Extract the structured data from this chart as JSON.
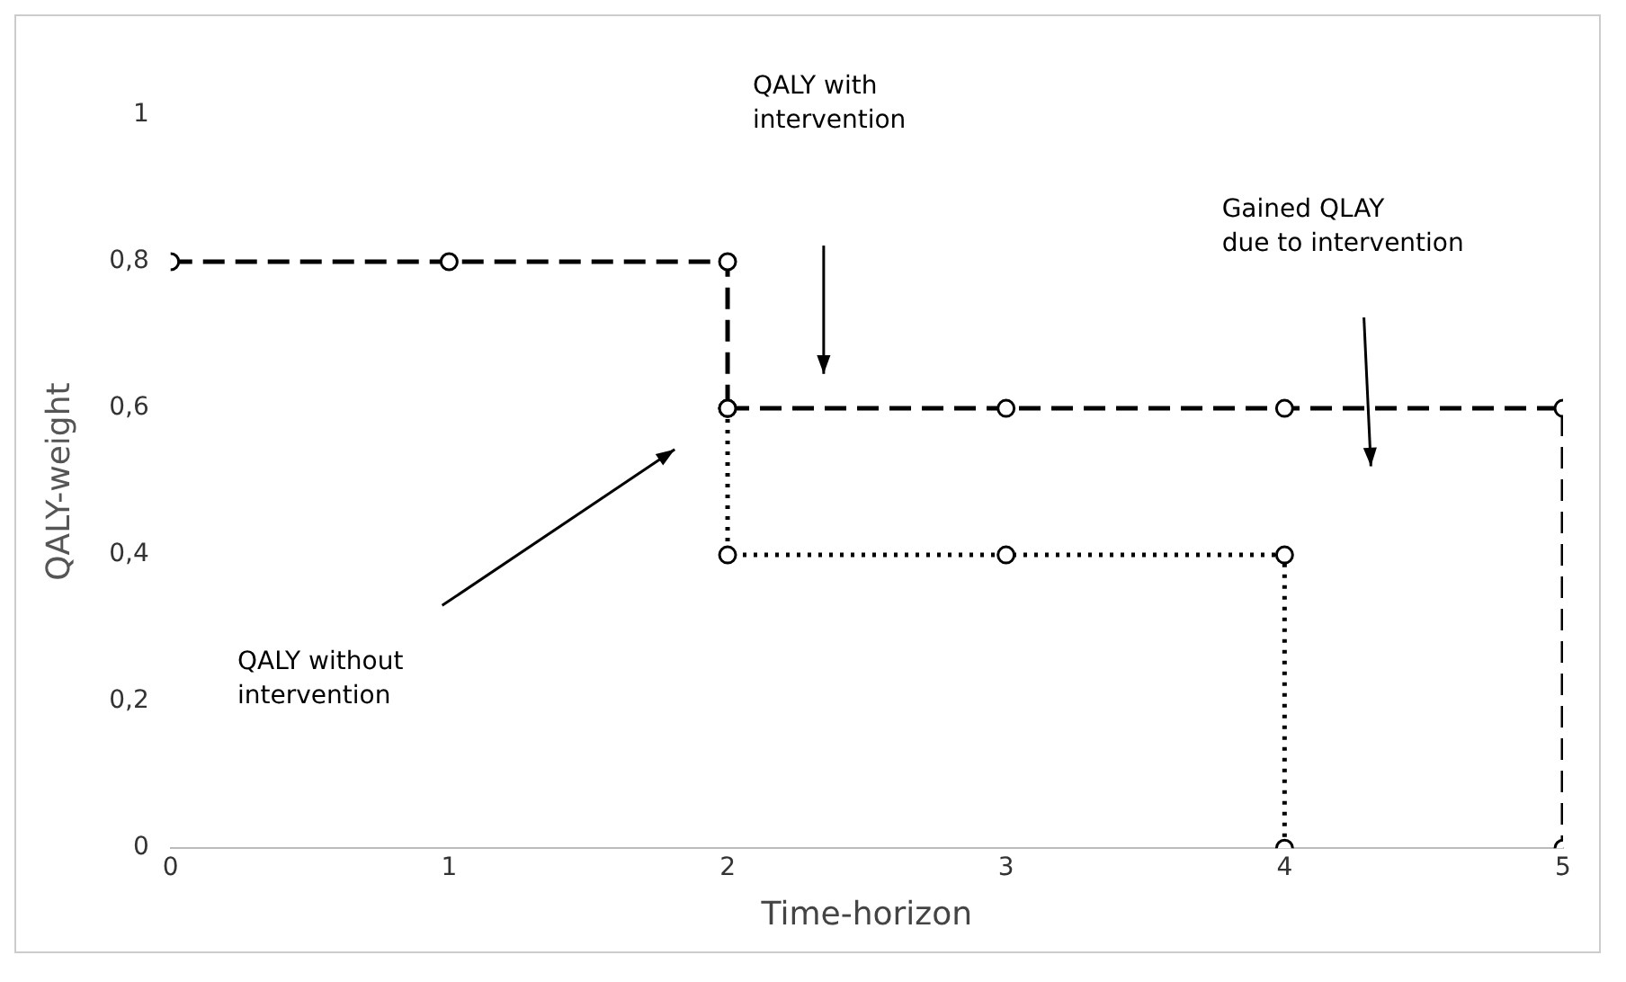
{
  "chart_data": {
    "type": "line",
    "xlabel": "Time-horizon",
    "ylabel": "QALY-weight",
    "xlim": [
      0,
      5
    ],
    "xticks": [
      0,
      1,
      2,
      3,
      4,
      5
    ],
    "ylim": [
      0,
      1
    ],
    "yticks": [
      {
        "value": 0,
        "label": "0"
      },
      {
        "value": 0.2,
        "label": "0,2"
      },
      {
        "value": 0.4,
        "label": "0,4"
      },
      {
        "value": 0.6,
        "label": "0,6"
      },
      {
        "value": 0.8,
        "label": "0,8"
      },
      {
        "value": 1,
        "label": "1"
      }
    ],
    "grid": false,
    "legend": false,
    "marker": "circle",
    "series": [
      {
        "color": "#000000",
        "line_style": "dashed",
        "x": [
          0,
          1,
          2,
          2
        ],
        "values": [
          0.8,
          0.8,
          0.8,
          0.6
        ]
      },
      {
        "color": "#000000",
        "line_style": "dashed",
        "x": [
          2,
          3,
          4,
          5,
          5
        ],
        "values": [
          0.6,
          0.6,
          0.6,
          0.6,
          0
        ]
      },
      {
        "color": "#000000",
        "line_style": "dotted",
        "x": [
          2,
          2,
          3,
          4,
          4
        ],
        "values": [
          0.6,
          0.4,
          0.4,
          0.4,
          0
        ]
      }
    ],
    "annotations": [
      "QALY with\nintervention",
      "Gained QLAY\ndue to intervention",
      "QALY without\nintervention"
    ]
  }
}
